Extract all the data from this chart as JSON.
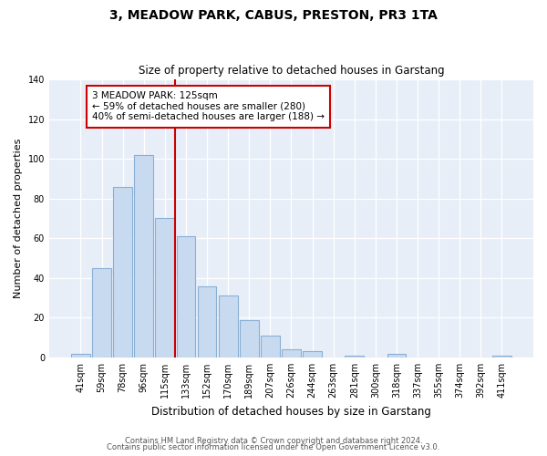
{
  "title": "3, MEADOW PARK, CABUS, PRESTON, PR3 1TA",
  "subtitle": "Size of property relative to detached houses in Garstang",
  "xlabel": "Distribution of detached houses by size in Garstang",
  "ylabel": "Number of detached properties",
  "bar_labels": [
    "41sqm",
    "59sqm",
    "78sqm",
    "96sqm",
    "115sqm",
    "133sqm",
    "152sqm",
    "170sqm",
    "189sqm",
    "207sqm",
    "226sqm",
    "244sqm",
    "263sqm",
    "281sqm",
    "300sqm",
    "318sqm",
    "337sqm",
    "355sqm",
    "374sqm",
    "392sqm",
    "411sqm"
  ],
  "bar_values": [
    2,
    45,
    86,
    102,
    70,
    61,
    36,
    31,
    19,
    11,
    4,
    3,
    0,
    1,
    0,
    2,
    0,
    0,
    0,
    0,
    1
  ],
  "bar_color": "#c8daf0",
  "bar_edgecolor": "#89afd4",
  "vline_color": "#cc0000",
  "annotation_title": "3 MEADOW PARK: 125sqm",
  "annotation_line1": "← 59% of detached houses are smaller (280)",
  "annotation_line2": "40% of semi-detached houses are larger (188) →",
  "annotation_box_edgecolor": "#cc0000",
  "ylim": [
    0,
    140
  ],
  "yticks": [
    0,
    20,
    40,
    60,
    80,
    100,
    120,
    140
  ],
  "footer1": "Contains HM Land Registry data © Crown copyright and database right 2024.",
  "footer2": "Contains public sector information licensed under the Open Government Licence v3.0.",
  "fig_facecolor": "#ffffff",
  "plot_facecolor": "#e8eef8"
}
